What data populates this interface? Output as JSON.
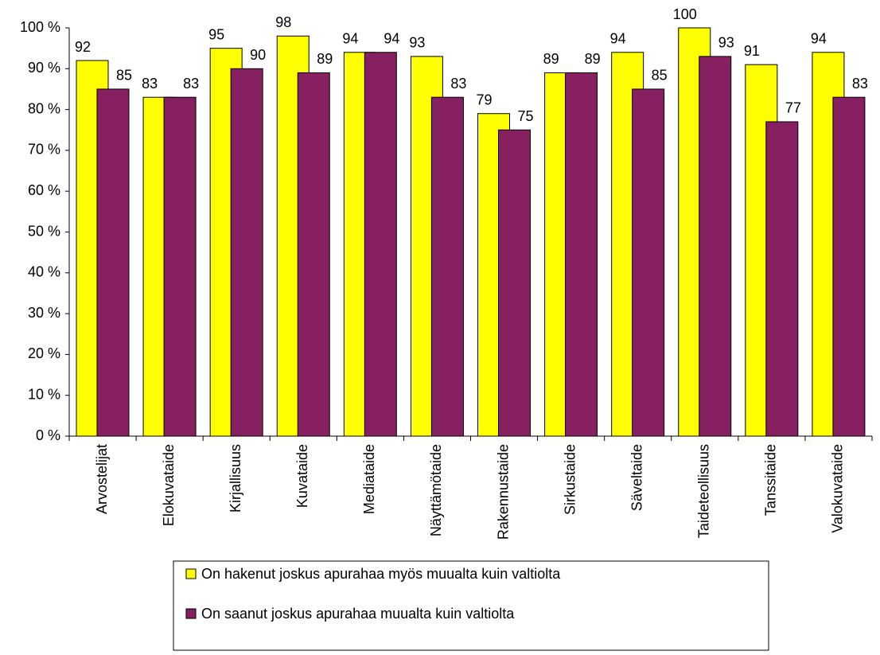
{
  "chart_data": {
    "type": "bar",
    "categories": [
      "Arvostelijat",
      "Elokuvataide",
      "Kirjallisuus",
      "Kuvataide",
      "Mediataide",
      "Näyttämötaide",
      "Rakennustaide",
      "Sirkustaide",
      "Säveltaide",
      "Taideteollisuus",
      "Tanssitaide",
      "Valokuvataide"
    ],
    "series": [
      {
        "name": "On hakenut joskus apurahaa myös muualta kuin valtiolta",
        "color": "#ffff00",
        "values": [
          92,
          83,
          95,
          98,
          94,
          93,
          79,
          89,
          94,
          100,
          91,
          94
        ]
      },
      {
        "name": "On saanut joskus apurahaa muualta kuin valtiolta",
        "color": "#862060",
        "values": [
          85,
          83,
          90,
          89,
          94,
          83,
          75,
          89,
          85,
          93,
          77,
          83
        ]
      }
    ],
    "ylim": [
      0,
      100
    ],
    "yticks": [
      {
        "value": 0,
        "label": "0 %"
      },
      {
        "value": 10,
        "label": "10 %"
      },
      {
        "value": 20,
        "label": "20 %"
      },
      {
        "value": 30,
        "label": "30 %"
      },
      {
        "value": 40,
        "label": "40 %"
      },
      {
        "value": 50,
        "label": "50 %"
      },
      {
        "value": 60,
        "label": "60 %"
      },
      {
        "value": 70,
        "label": "70 %"
      },
      {
        "value": 80,
        "label": "80 %"
      },
      {
        "value": 90,
        "label": "90 %"
      },
      {
        "value": 100,
        "label": "100 %"
      }
    ],
    "grid": false,
    "legend": "bottom"
  }
}
